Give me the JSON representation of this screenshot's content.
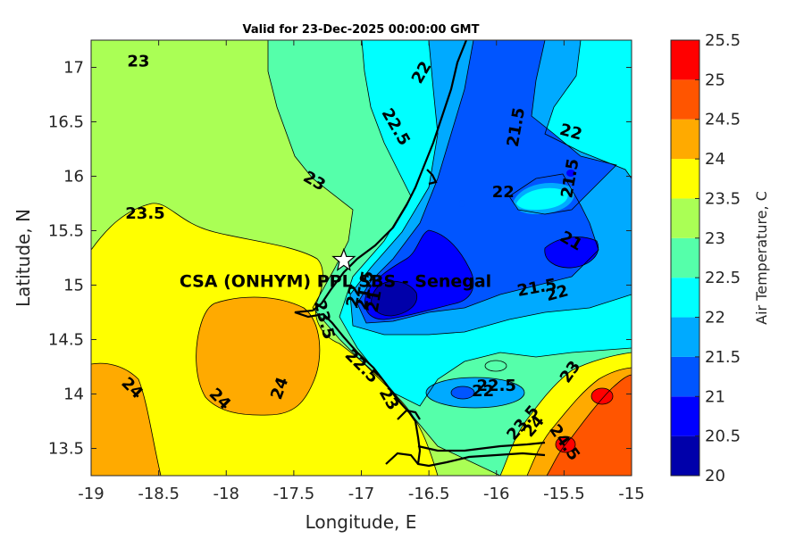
{
  "title": "Valid for 23-Dec-2025 00:00:00 GMT",
  "station_label": "CSA (ONHYM) PPL SBS  - Senegal",
  "colorbar_label": "Air Temperature, C",
  "colors": {
    "c20": "#0000aa",
    "c20_5": "#0000ff",
    "c21": "#0055ff",
    "c21_5": "#00aaff",
    "c22": "#00ffff",
    "c22_5": "#55ffaa",
    "c23": "#aaff55",
    "c23_5": "#ffff00",
    "c24": "#ffaa00",
    "c24_5": "#ff5500",
    "c25": "#ff0000",
    "c25_5": "#aa0000"
  },
  "chart_data": {
    "type": "heatmap",
    "title": "Valid for 23-Dec-2025 00:00:00 GMT",
    "xlabel": "Longitude, E",
    "ylabel": "Latitude, N",
    "xlim": [
      -19,
      -15
    ],
    "ylim": [
      13.25,
      17.25
    ],
    "x_ticks": [
      "-19",
      "-18.5",
      "-18",
      "-17.5",
      "-17",
      "-16.5",
      "-16",
      "-15.5",
      "-15"
    ],
    "x_tick_values": [
      -19,
      -18.5,
      -18,
      -17.5,
      -17,
      -16.5,
      -16,
      -15.5,
      -15
    ],
    "y_ticks": [
      "13.5",
      "14",
      "14.5",
      "15",
      "15.5",
      "16",
      "16.5",
      "17"
    ],
    "y_tick_values": [
      13.5,
      14,
      14.5,
      15,
      15.5,
      16,
      16.5,
      17
    ],
    "colorbar": {
      "label": "Air Temperature, C",
      "min": 20,
      "max": 25.5,
      "ticks": [
        "20",
        "20.5",
        "21",
        "21.5",
        "22",
        "22.5",
        "23",
        "23.5",
        "24",
        "24.5",
        "25",
        "25.5"
      ],
      "tick_values": [
        20,
        20.5,
        21,
        21.5,
        22,
        22.5,
        23,
        23.5,
        24,
        24.5,
        25,
        25.5
      ]
    },
    "station": {
      "name": "CSA (ONHYM) PPL SBS  - Senegal",
      "lon": -17.13,
      "lat": 15.23
    },
    "contour_labels": [
      {
        "text": "23",
        "lon": -18.65,
        "lat": 17.05,
        "rot": 0
      },
      {
        "text": "22",
        "lon": -16.55,
        "lat": 16.95,
        "rot": -60
      },
      {
        "text": "22.5",
        "lon": -16.75,
        "lat": 16.45,
        "rot": 60
      },
      {
        "text": "21.5",
        "lon": -15.85,
        "lat": 16.45,
        "rot": -80
      },
      {
        "text": "22",
        "lon": -15.45,
        "lat": 16.4,
        "rot": 15
      },
      {
        "text": "23",
        "lon": -17.35,
        "lat": 15.95,
        "rot": 30
      },
      {
        "text": "21.5",
        "lon": -15.45,
        "lat": 15.98,
        "rot": -80
      },
      {
        "text": "22",
        "lon": -15.95,
        "lat": 15.85,
        "rot": 0
      },
      {
        "text": "23.5",
        "lon": -18.6,
        "lat": 15.65,
        "rot": 0
      },
      {
        "text": "21",
        "lon": -15.45,
        "lat": 15.4,
        "rot": 30
      },
      {
        "text": "21.5",
        "lon": -15.7,
        "lat": 14.97,
        "rot": -10
      },
      {
        "text": "22",
        "lon": -15.55,
        "lat": 14.92,
        "rot": -15
      },
      {
        "text": "23.5",
        "lon": -17.28,
        "lat": 14.68,
        "rot": 75
      },
      {
        "text": "22.5",
        "lon": -17.0,
        "lat": 14.25,
        "rot": 45
      },
      {
        "text": "23",
        "lon": -15.45,
        "lat": 14.2,
        "rot": -55
      },
      {
        "text": "24",
        "lon": -18.7,
        "lat": 14.05,
        "rot": 45
      },
      {
        "text": "24",
        "lon": -17.6,
        "lat": 14.05,
        "rot": -70
      },
      {
        "text": "24",
        "lon": -18.05,
        "lat": 13.95,
        "rot": 45
      },
      {
        "text": "22.5",
        "lon": -16.0,
        "lat": 14.07,
        "rot": 0
      },
      {
        "text": "22",
        "lon": -16.1,
        "lat": 14.02,
        "rot": 0
      },
      {
        "text": "23",
        "lon": -16.8,
        "lat": 13.95,
        "rot": 60
      },
      {
        "text": "23.5",
        "lon": -15.8,
        "lat": 13.73,
        "rot": -50
      },
      {
        "text": "24",
        "lon": -15.72,
        "lat": 13.7,
        "rot": -50
      },
      {
        "text": "24.5",
        "lon": -15.5,
        "lat": 13.55,
        "rot": 55
      },
      {
        "text": "21",
        "lon": -16.9,
        "lat": 14.85,
        "rot": -80
      },
      {
        "text": "21.5",
        "lon": -16.97,
        "lat": 14.95,
        "rot": -80
      },
      {
        "text": "22",
        "lon": -17.05,
        "lat": 14.9,
        "rot": -80
      }
    ]
  }
}
